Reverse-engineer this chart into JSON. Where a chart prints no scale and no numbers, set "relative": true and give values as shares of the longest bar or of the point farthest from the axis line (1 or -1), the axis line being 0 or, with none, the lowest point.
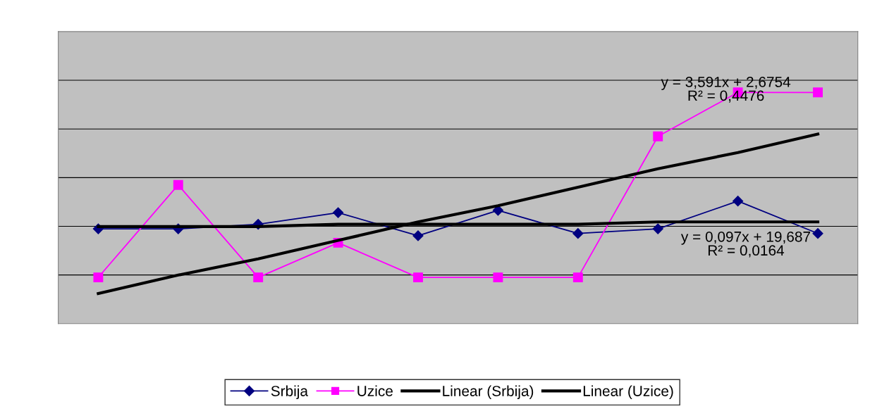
{
  "chart_data": {
    "type": "line",
    "relative": true,
    "grid": "y",
    "legend": "bottom",
    "categories": [
      null,
      null,
      null,
      null,
      null,
      null,
      null,
      null,
      null,
      null
    ],
    "series": [
      {
        "name": "Srbija",
        "color": "#000080",
        "marker": "diamond",
        "values": [
          0.41,
          0.41,
          0.43,
          0.48,
          0.38,
          0.49,
          0.39,
          0.41,
          0.53,
          0.39
        ]
      },
      {
        "name": "Uzice",
        "color": "#ff00ff",
        "marker": "square",
        "values": [
          0.2,
          0.6,
          0.2,
          0.35,
          0.2,
          0.2,
          0.2,
          0.81,
          1,
          1
        ]
      },
      {
        "name": "Linear (Srbija)",
        "color": "#000000",
        "values": [
          0.42,
          0.42,
          0.42,
          0.43,
          0.43,
          0.43,
          0.43,
          0.44,
          0.44,
          0.44
        ]
      },
      {
        "name": "Linear (Uzice)",
        "color": "#000000",
        "values": [
          0.13,
          0.21,
          0.28,
          0.36,
          0.44,
          0.51,
          0.59,
          0.67,
          0.74,
          0.82
        ]
      }
    ],
    "annotations": [
      "y = 3,591x + 2,6754\nR² = 0,4476",
      "y = 0,097x + 19,687\nR² = 0,0164"
    ]
  }
}
